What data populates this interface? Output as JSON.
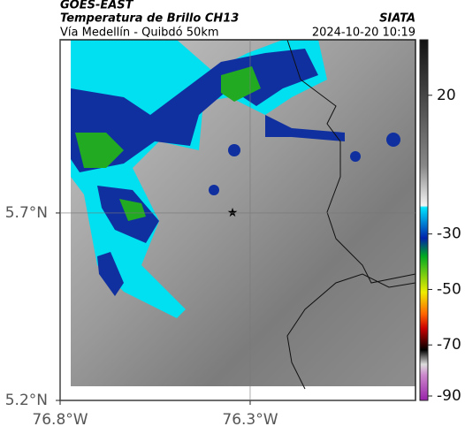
{
  "header": {
    "satellite": "GOES-EAST",
    "title": "Temperatura de Brillo CH13",
    "subtitle": "Vía Medellín - Quibdó 50km",
    "source": "SIATA",
    "datetime": "2024-10-20 10:19"
  },
  "map": {
    "xlim": [
      -76.8,
      -75.865
    ],
    "ylim": [
      5.2,
      6.162
    ],
    "xticks": [
      {
        "value": -76.8,
        "label": "76.8°W"
      },
      {
        "value": -76.3,
        "label": "76.3°W"
      }
    ],
    "yticks": [
      {
        "value": 5.7,
        "label": "5.7°N"
      },
      {
        "value": 5.2,
        "label": "5.2°N"
      }
    ]
  },
  "colorbar": {
    "lim": [
      -90,
      40
    ],
    "ticks": [
      20,
      -30,
      -50,
      -70,
      -90
    ]
  }
}
